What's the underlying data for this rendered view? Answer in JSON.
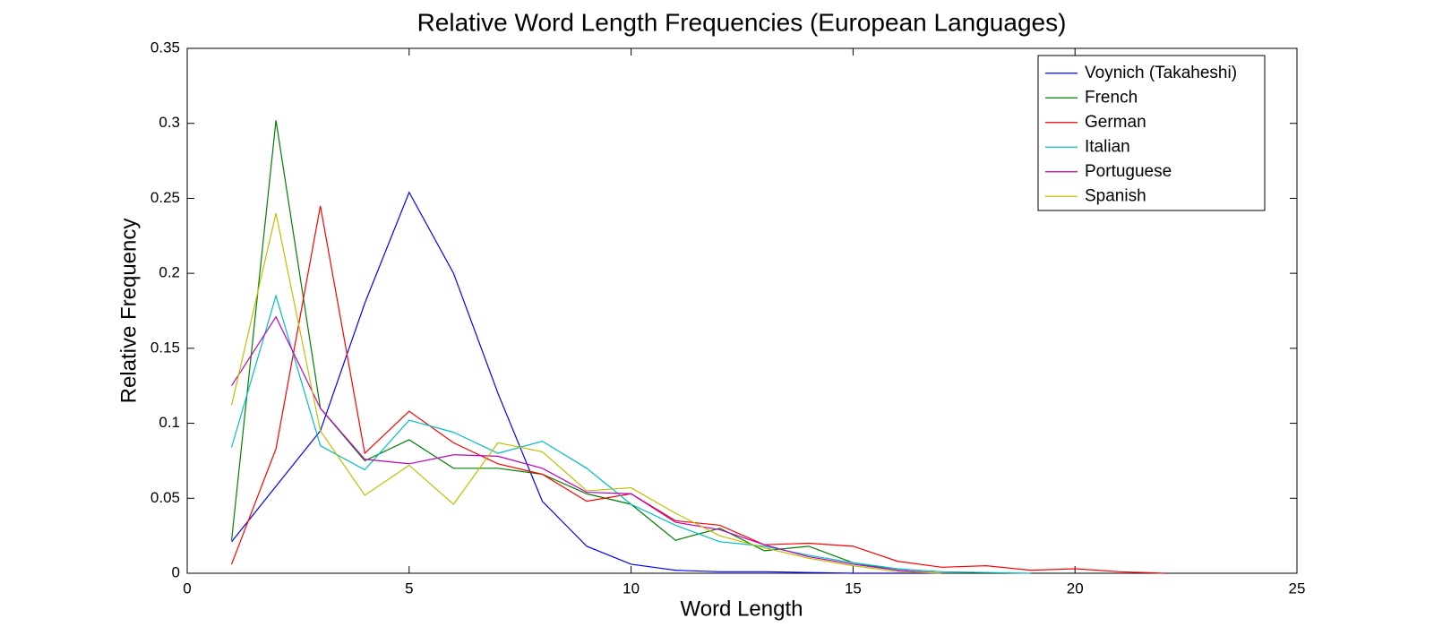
{
  "chart_data": {
    "type": "line",
    "title": "Relative Word Length Frequencies (European Languages)",
    "x_label": "Word Length",
    "y_label": "Relative Frequency",
    "xlim": [
      0,
      25
    ],
    "xticks": [
      0,
      5,
      10,
      15,
      20,
      25
    ],
    "ylim": [
      0,
      0.35
    ],
    "yticks": [
      0,
      0.05,
      0.1,
      0.15,
      0.2,
      0.25,
      0.3,
      0.35
    ],
    "legend_position": "upper right",
    "series": [
      {
        "name": "Voynich (Takaheshi)",
        "color": "#0000ff",
        "x": [
          1,
          2,
          3,
          4,
          5,
          6,
          7,
          8,
          9,
          10,
          11,
          12,
          13,
          14,
          15,
          16,
          17
        ],
        "values": [
          0.021,
          0.058,
          0.095,
          0.18,
          0.254,
          0.2,
          0.12,
          0.048,
          0.018,
          0.006,
          0.002,
          0.001,
          0.001,
          0.0005,
          0,
          0,
          0
        ]
      },
      {
        "name": "French",
        "color": "#008000",
        "x": [
          1,
          2,
          3,
          4,
          5,
          6,
          7,
          8,
          9,
          10,
          11,
          12,
          13,
          14,
          15,
          16,
          17
        ],
        "values": [
          0.022,
          0.302,
          0.11,
          0.075,
          0.089,
          0.07,
          0.07,
          0.066,
          0.053,
          0.046,
          0.022,
          0.03,
          0.015,
          0.018,
          0.007,
          0.002,
          0
        ]
      },
      {
        "name": "German",
        "color": "#ff0000",
        "x": [
          1,
          2,
          3,
          4,
          5,
          6,
          7,
          8,
          9,
          10,
          11,
          12,
          13,
          14,
          15,
          16,
          17,
          18,
          19,
          20,
          21,
          22
        ],
        "values": [
          0.006,
          0.083,
          0.245,
          0.08,
          0.108,
          0.087,
          0.073,
          0.066,
          0.048,
          0.053,
          0.035,
          0.032,
          0.019,
          0.02,
          0.018,
          0.008,
          0.004,
          0.005,
          0.002,
          0.003,
          0.001,
          0
        ]
      },
      {
        "name": "Italian",
        "color": "#00bfbf",
        "x": [
          1,
          2,
          3,
          4,
          5,
          6,
          7,
          8,
          9,
          10,
          11,
          12,
          13,
          14,
          15,
          16,
          17,
          18,
          19
        ],
        "values": [
          0.084,
          0.185,
          0.085,
          0.069,
          0.102,
          0.094,
          0.08,
          0.088,
          0.07,
          0.046,
          0.032,
          0.021,
          0.018,
          0.012,
          0.007,
          0.003,
          0.001,
          0.0005,
          0
        ]
      },
      {
        "name": "Portuguese",
        "color": "#bf00bf",
        "x": [
          1,
          2,
          3,
          4,
          5,
          6,
          7,
          8,
          9,
          10,
          11,
          12,
          13,
          14,
          15,
          16,
          17
        ],
        "values": [
          0.125,
          0.171,
          0.11,
          0.076,
          0.073,
          0.079,
          0.078,
          0.07,
          0.054,
          0.053,
          0.034,
          0.029,
          0.019,
          0.011,
          0.006,
          0.002,
          0
        ]
      },
      {
        "name": "Spanish",
        "color": "#bfbf00",
        "x": [
          1,
          2,
          3,
          4,
          5,
          6,
          7,
          8,
          9,
          10,
          11,
          12,
          13,
          14,
          15,
          16,
          17
        ],
        "values": [
          0.112,
          0.24,
          0.095,
          0.052,
          0.072,
          0.046,
          0.087,
          0.081,
          0.055,
          0.057,
          0.04,
          0.025,
          0.017,
          0.01,
          0.005,
          0.001,
          0
        ]
      }
    ]
  }
}
